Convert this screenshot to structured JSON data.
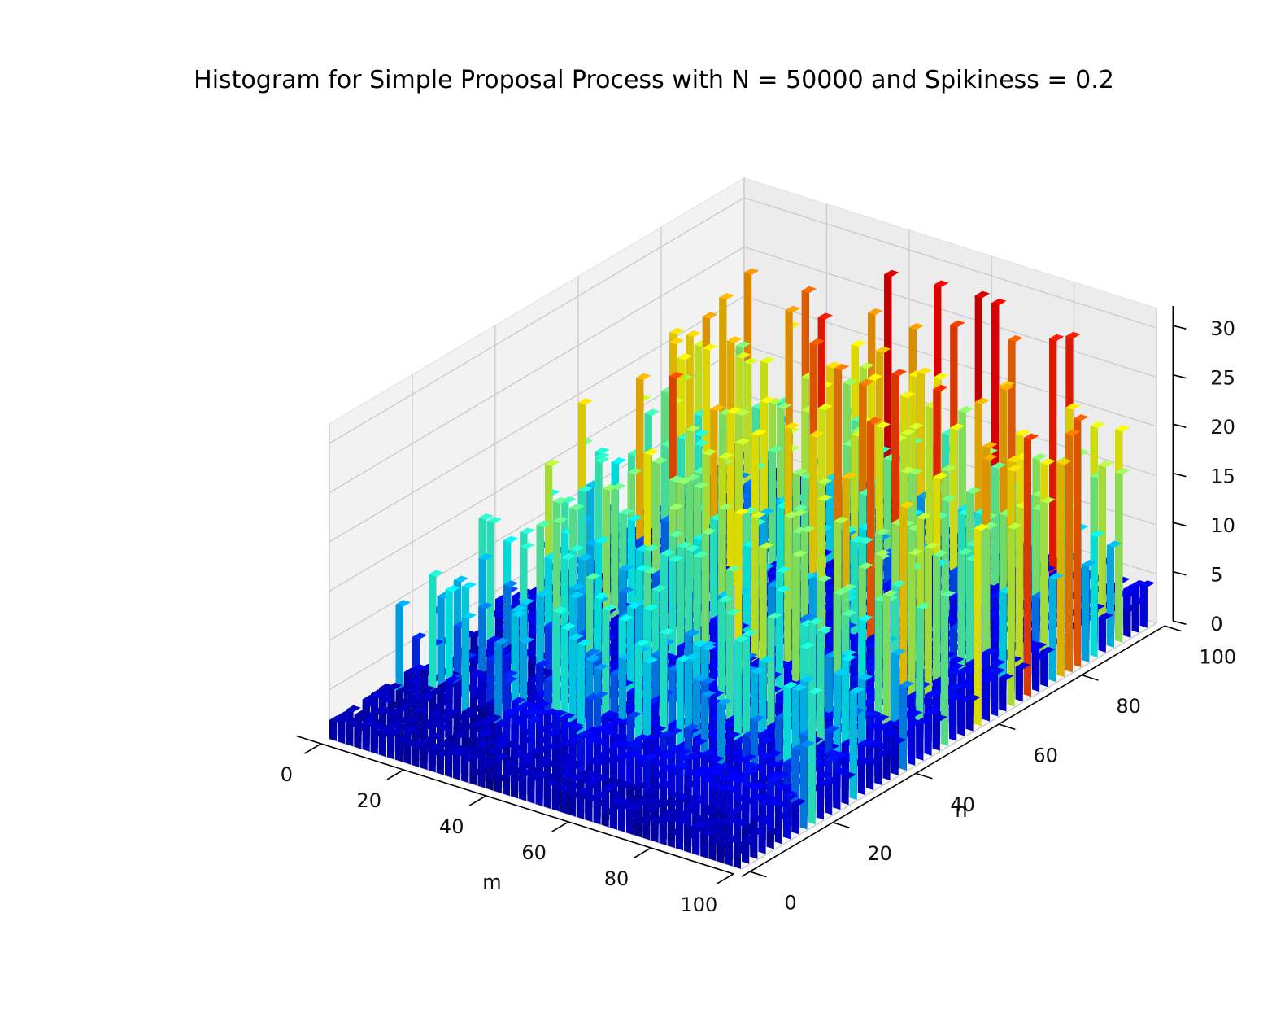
{
  "chart_data": {
    "type": "bar3d",
    "title": "Histogram for Simple Proposal Process with N = 50000 and Spikiness = 0.2",
    "xlabel": "m",
    "ylabel": "n",
    "zlabel": "",
    "x_ticks": [
      0,
      20,
      40,
      60,
      80,
      100
    ],
    "y_ticks": [
      0,
      20,
      40,
      60,
      80,
      100
    ],
    "z_ticks": [
      0,
      5,
      10,
      15,
      20,
      25,
      30
    ],
    "xlim": [
      0,
      100
    ],
    "ylim": [
      0,
      100
    ],
    "zlim": [
      0,
      32
    ],
    "grid": true,
    "colormap": "jet",
    "bin_size": 2,
    "prominent_bars": [
      {
        "m": 40,
        "n": 95,
        "count": 29
      },
      {
        "m": 48,
        "n": 98,
        "count": 28
      },
      {
        "m": 60,
        "n": 97,
        "count": 29
      },
      {
        "m": 63,
        "n": 98,
        "count": 28
      },
      {
        "m": 56,
        "n": 95,
        "count": 26
      },
      {
        "m": 78,
        "n": 97,
        "count": 27
      },
      {
        "m": 80,
        "n": 98,
        "count": 27
      },
      {
        "m": 100,
        "n": 82,
        "count": 25
      },
      {
        "m": 98,
        "n": 80,
        "count": 24
      },
      {
        "m": 36,
        "n": 80,
        "count": 25
      },
      {
        "m": 44,
        "n": 78,
        "count": 24
      },
      {
        "m": 52,
        "n": 76,
        "count": 24
      },
      {
        "m": 30,
        "n": 62,
        "count": 22
      },
      {
        "m": 50,
        "n": 66,
        "count": 21
      },
      {
        "m": 70,
        "n": 86,
        "count": 22
      },
      {
        "m": 88,
        "n": 76,
        "count": 21
      },
      {
        "m": 6,
        "n": 18,
        "count": 13
      },
      {
        "m": 26,
        "n": 50,
        "count": 20
      },
      {
        "m": 64,
        "n": 40,
        "count": 18
      },
      {
        "m": 76,
        "n": 60,
        "count": 17
      }
    ]
  }
}
